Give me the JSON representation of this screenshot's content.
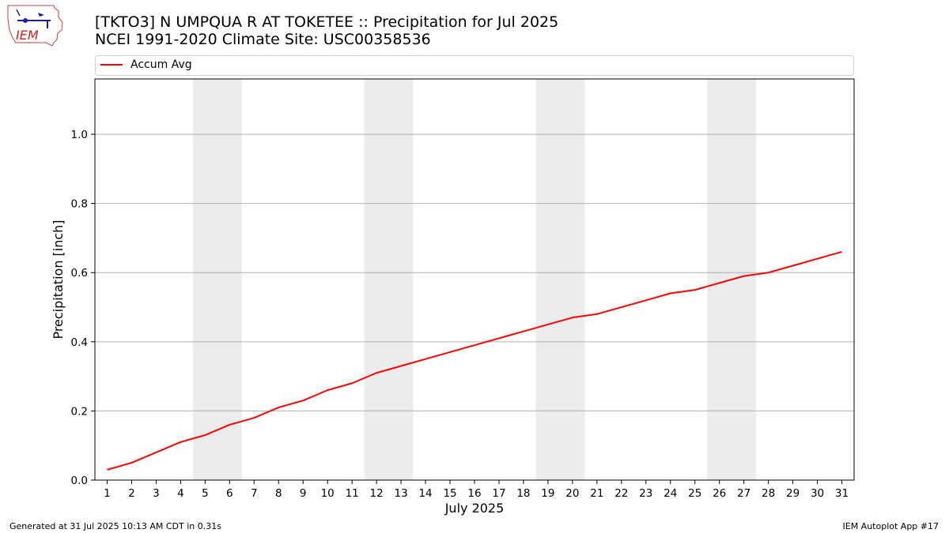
{
  "logo": {
    "text": "IEM"
  },
  "header": {
    "title_line1": "[TKTO3] N UMPQUA R AT TOKETEE :: Precipitation for Jul 2025",
    "title_line2": "NCEI 1991-2020 Climate Site: USC00358536"
  },
  "footer": {
    "generated": "Generated at 31 Jul 2025 10:13 AM CDT in 0.31s",
    "app": "IEM Autoplot App #17"
  },
  "chart_data": {
    "type": "line",
    "xlabel": "July 2025",
    "ylabel": "Precipitation [inch]",
    "xlim": [
      0.5,
      31.5
    ],
    "ylim": [
      0,
      1.16
    ],
    "yticks": [
      0.0,
      0.2,
      0.4,
      0.6,
      0.8,
      1.0
    ],
    "ytick_labels": [
      "0.0",
      "0.2",
      "0.4",
      "0.6",
      "0.8",
      "1.0"
    ],
    "x": [
      1,
      2,
      3,
      4,
      5,
      6,
      7,
      8,
      9,
      10,
      11,
      12,
      13,
      14,
      15,
      16,
      17,
      18,
      19,
      20,
      21,
      22,
      23,
      24,
      25,
      26,
      27,
      28,
      29,
      30,
      31
    ],
    "grid": "horizontal",
    "legend": "top",
    "weekend_shading": [
      [
        5,
        6
      ],
      [
        12,
        13
      ],
      [
        19,
        20
      ],
      [
        26,
        27
      ]
    ],
    "shade_color": "#ececec",
    "series": [
      {
        "name": "Accum Avg",
        "color": "#ff0000",
        "values": [
          0.03,
          0.05,
          0.08,
          0.11,
          0.13,
          0.16,
          0.18,
          0.21,
          0.23,
          0.26,
          0.28,
          0.31,
          0.33,
          0.35,
          0.37,
          0.39,
          0.41,
          0.43,
          0.45,
          0.47,
          0.48,
          0.5,
          0.52,
          0.54,
          0.55,
          0.57,
          0.59,
          0.6,
          0.62,
          0.64,
          0.66
        ]
      }
    ]
  }
}
